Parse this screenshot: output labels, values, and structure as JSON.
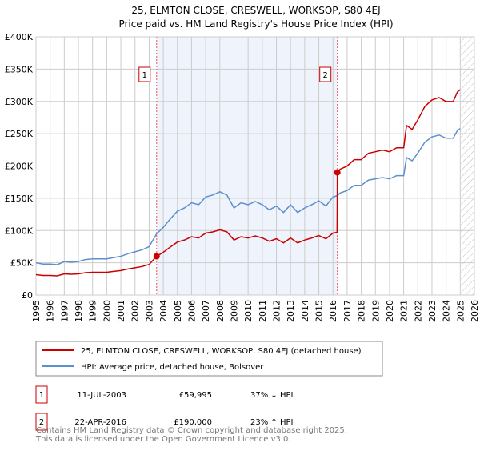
{
  "chart_data": {
    "type": "line",
    "title": "25, ELMTON CLOSE, CRESWELL, WORKSOP, S80 4EJ",
    "subtitle": "Price paid vs. HM Land Registry's House Price Index (HPI)",
    "ylim": [
      0,
      400000
    ],
    "xlim": [
      1995,
      2026
    ],
    "yticks": [
      {
        "v": 0,
        "label": "£0"
      },
      {
        "v": 50000,
        "label": "£50K"
      },
      {
        "v": 100000,
        "label": "£100K"
      },
      {
        "v": 150000,
        "label": "£150K"
      },
      {
        "v": 200000,
        "label": "£200K"
      },
      {
        "v": 250000,
        "label": "£250K"
      },
      {
        "v": 300000,
        "label": "£300K"
      },
      {
        "v": 350000,
        "label": "£350K"
      },
      {
        "v": 400000,
        "label": "£400K"
      }
    ],
    "xticks": [
      "1995",
      "1996",
      "1997",
      "1998",
      "1999",
      "2000",
      "2001",
      "2002",
      "2003",
      "2004",
      "2005",
      "2006",
      "2007",
      "2008",
      "2009",
      "2010",
      "2011",
      "2012",
      "2013",
      "2014",
      "2015",
      "2016",
      "2017",
      "2018",
      "2019",
      "2020",
      "2021",
      "2022",
      "2023",
      "2024",
      "2025",
      "2026"
    ],
    "colors": {
      "property": "#cc0000",
      "hpi": "#5b8fd0",
      "shade": "#eef3fc"
    },
    "hpi_series": [
      [
        1995,
        50
      ],
      [
        1995.5,
        48
      ],
      [
        1996,
        48
      ],
      [
        1996.5,
        47
      ],
      [
        1997,
        52
      ],
      [
        1997.5,
        51
      ],
      [
        1998,
        52
      ],
      [
        1998.5,
        55
      ],
      [
        1999,
        56
      ],
      [
        1999.5,
        56
      ],
      [
        2000,
        56
      ],
      [
        2000.5,
        58
      ],
      [
        2001,
        60
      ],
      [
        2001.5,
        64
      ],
      [
        2002,
        67
      ],
      [
        2002.5,
        70
      ],
      [
        2003,
        75
      ],
      [
        2003.53,
        95
      ],
      [
        2004,
        105
      ],
      [
        2004.5,
        118
      ],
      [
        2005,
        130
      ],
      [
        2005.5,
        135
      ],
      [
        2006,
        143
      ],
      [
        2006.5,
        140
      ],
      [
        2007,
        152
      ],
      [
        2007.5,
        155
      ],
      [
        2008,
        160
      ],
      [
        2008.5,
        155
      ],
      [
        2009,
        135
      ],
      [
        2009.5,
        143
      ],
      [
        2010,
        140
      ],
      [
        2010.5,
        145
      ],
      [
        2011,
        140
      ],
      [
        2011.5,
        132
      ],
      [
        2012,
        138
      ],
      [
        2012.5,
        128
      ],
      [
        2013,
        140
      ],
      [
        2013.5,
        128
      ],
      [
        2014,
        135
      ],
      [
        2014.5,
        140
      ],
      [
        2015,
        146
      ],
      [
        2015.5,
        138
      ],
      [
        2016,
        152
      ],
      [
        2016.31,
        154
      ],
      [
        2016.5,
        158
      ],
      [
        2017,
        162
      ],
      [
        2017.5,
        170
      ],
      [
        2018,
        170
      ],
      [
        2018.5,
        178
      ],
      [
        2019,
        180
      ],
      [
        2019.5,
        182
      ],
      [
        2020,
        180
      ],
      [
        2020.5,
        185
      ],
      [
        2021,
        185
      ],
      [
        2021.2,
        213
      ],
      [
        2021.6,
        208
      ],
      [
        2022,
        220
      ],
      [
        2022.5,
        237
      ],
      [
        2023,
        245
      ],
      [
        2023.5,
        248
      ],
      [
        2024,
        243
      ],
      [
        2024.5,
        243
      ],
      [
        2024.8,
        255
      ],
      [
        2025,
        258
      ]
    ],
    "sales": [
      {
        "id": "1",
        "x": 2003.53,
        "price": 59995,
        "date": "11-JUL-2003",
        "price_label": "£59,995",
        "hpi_label": "37% ↓ HPI"
      },
      {
        "id": "2",
        "x": 2016.31,
        "price": 190000,
        "date": "22-APR-2016",
        "price_label": "£190,000",
        "hpi_label": "23% ↑ HPI"
      }
    ],
    "legend": {
      "property": "25, ELMTON CLOSE, CRESWELL, WORKSOP, S80 4EJ (detached house)",
      "hpi": "HPI: Average price, detached house, Bolsover"
    }
  },
  "footer": {
    "line1": "Contains HM Land Registry data © Crown copyright and database right 2025.",
    "line2": "This data is licensed under the Open Government Licence v3.0."
  }
}
